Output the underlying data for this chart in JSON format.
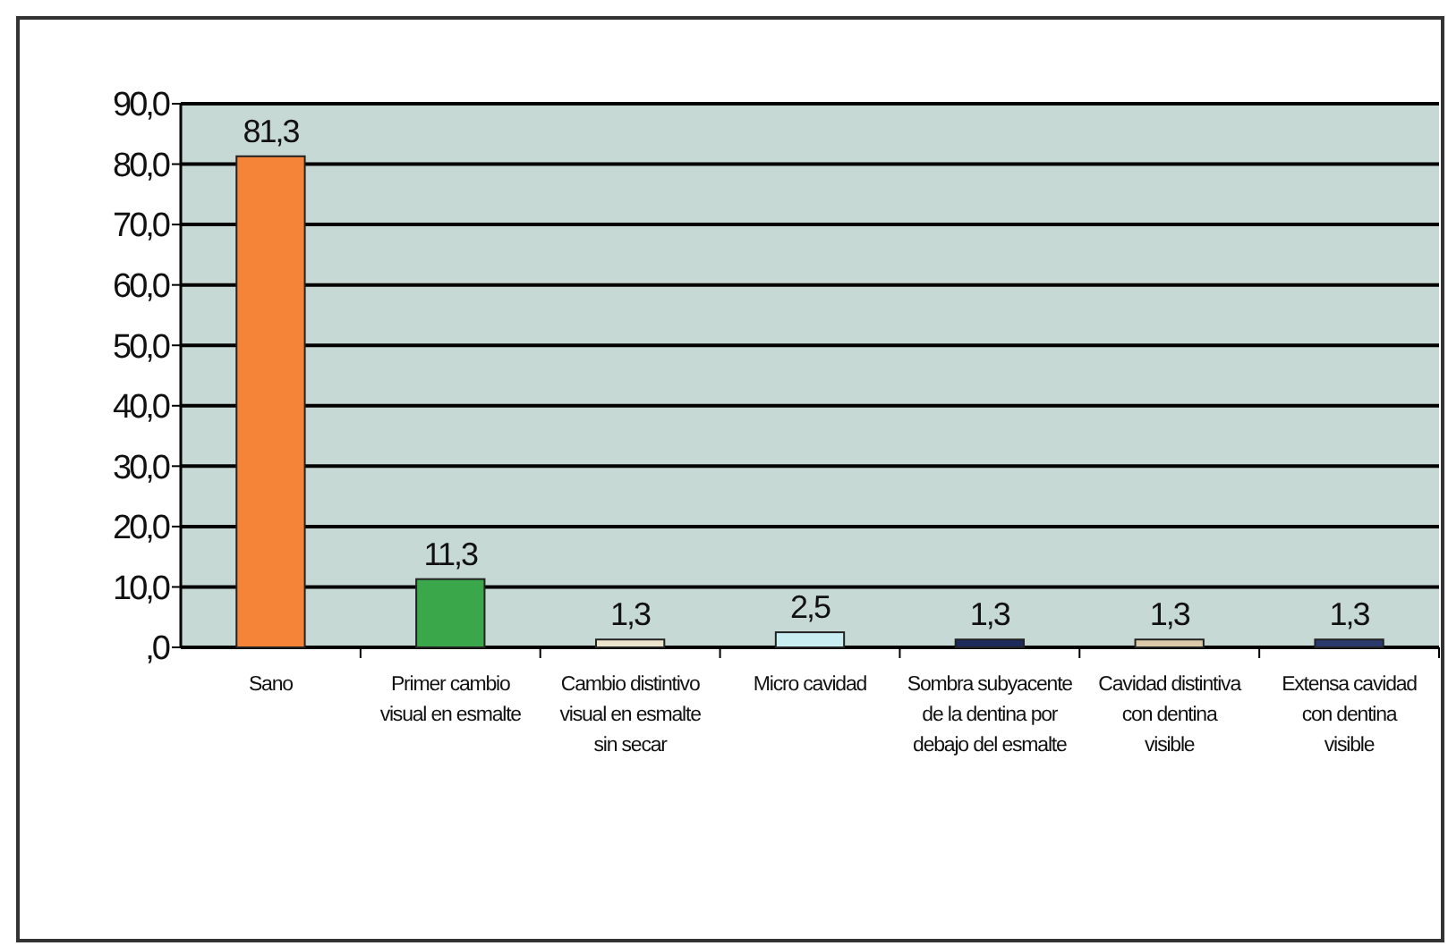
{
  "chart_data": {
    "type": "bar",
    "categories": [
      "Sano",
      "Primer cambio visual en esmalte",
      "Cambio distintivo visual en esmalte sin secar",
      "Micro cavidad",
      "Sombra subyacente de la dentina por debajo del esmalte",
      "Cavidad distintiva con dentina visible",
      "Extensa cavidad con dentina visible"
    ],
    "values": [
      81.3,
      11.3,
      1.3,
      2.5,
      1.3,
      1.3,
      1.3
    ],
    "colors": [
      "#f58438",
      "#3aa84a",
      "#ece4cc",
      "#c8eef2",
      "#1c2a5c",
      "#dccaa8",
      "#2a3a6c"
    ],
    "value_labels": [
      "81,3",
      "11,3",
      "1,3",
      "2,5",
      "1,3",
      "1,3",
      "1,3"
    ],
    "ylim": [
      0,
      90
    ],
    "yticks": [
      {
        "value": 0,
        "label": ",0"
      },
      {
        "value": 10,
        "label": "10,0"
      },
      {
        "value": 20,
        "label": "20,0"
      },
      {
        "value": 30,
        "label": "30,0"
      },
      {
        "value": 40,
        "label": "40,0"
      },
      {
        "value": 50,
        "label": "50,0"
      },
      {
        "value": 60,
        "label": "60,0"
      },
      {
        "value": 70,
        "label": "70,0"
      },
      {
        "value": 80,
        "label": "80,0"
      },
      {
        "value": 90,
        "label": "90,0"
      }
    ],
    "grid": "y"
  }
}
